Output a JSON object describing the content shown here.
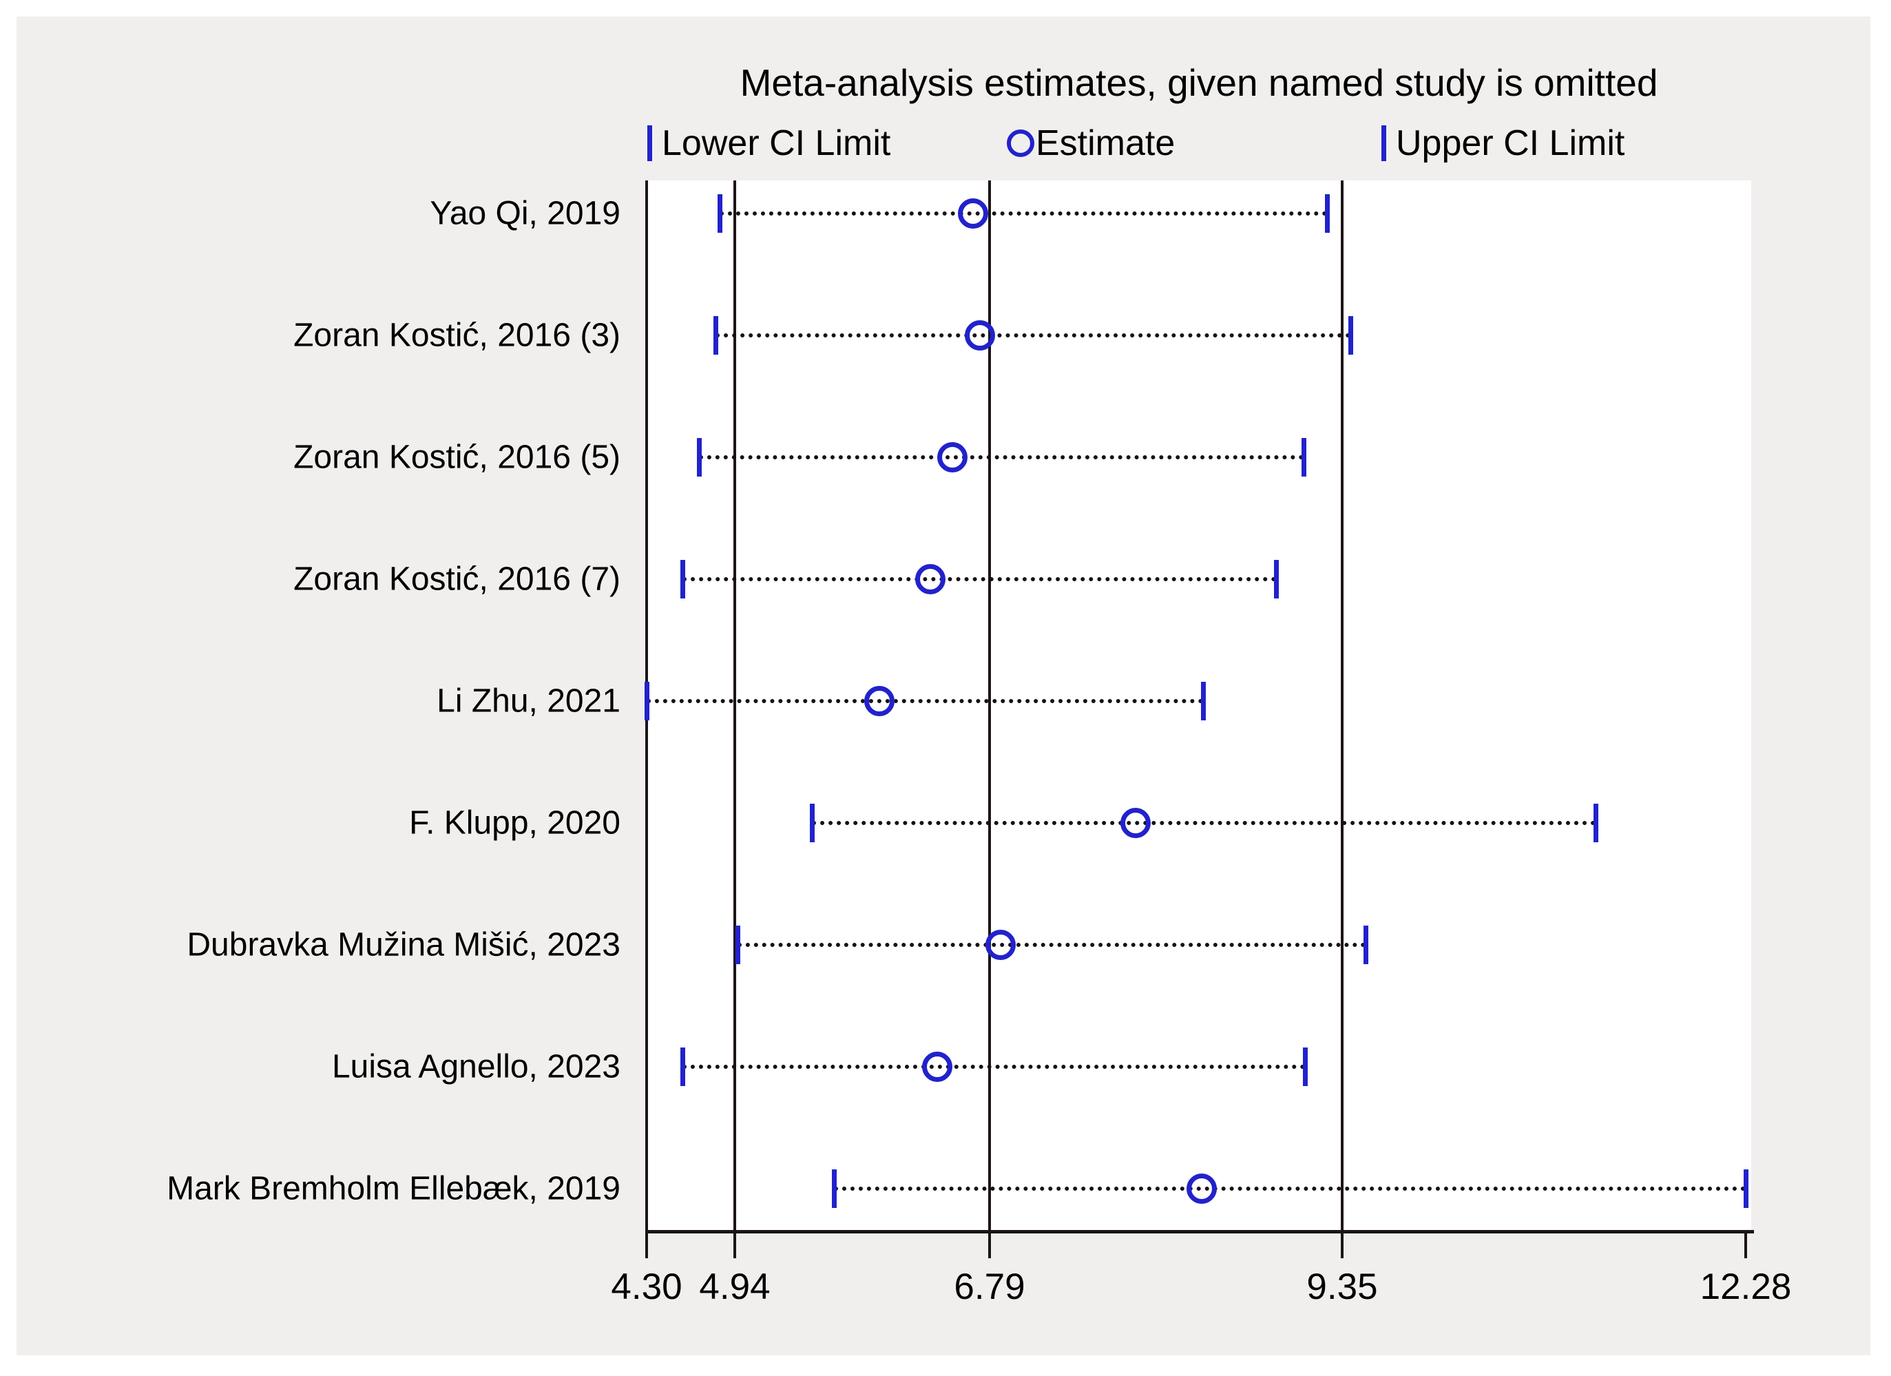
{
  "title": "Meta-analysis estimates, given named study is omitted",
  "legend": {
    "items": [
      {
        "marker": "lower-ci-bar-icon",
        "label": "Lower CI Limit"
      },
      {
        "marker": "estimate-circle-icon",
        "label": "Estimate"
      },
      {
        "marker": "upper-ci-bar-icon",
        "label": "Upper CI Limit"
      }
    ]
  },
  "colors": {
    "marker_blue": "#2222cc",
    "line_black": "#1c1416",
    "panel_grey": "#f0efee",
    "plot_background": "#ffffff",
    "text": "#000000"
  },
  "chart_data": {
    "type": "scatter",
    "subtype": "leave-one-out-sensitivity-forest",
    "title": "Meta-analysis estimates, given named study is omitted",
    "legend_entries": [
      "Lower CI Limit",
      "Estimate",
      "Upper CI Limit"
    ],
    "legend_position": "top",
    "xlim": [
      4.3,
      12.28
    ],
    "x_tick_labels": [
      "4.30",
      "4.94",
      "6.79",
      "9.35",
      "12.28"
    ],
    "reference_lines": [
      4.94,
      6.79,
      9.35
    ],
    "axis_boundary_line": 4.3,
    "grid": false,
    "studies": [
      {
        "label": "Yao Qi, 2019",
        "lower": 4.83,
        "estimate": 6.67,
        "upper": 9.24
      },
      {
        "label": "Zoran Kostić, 2016 (3)",
        "lower": 4.8,
        "estimate": 6.72,
        "upper": 9.41
      },
      {
        "label": "Zoran Kostić, 2016 (5)",
        "lower": 4.68,
        "estimate": 6.52,
        "upper": 9.07
      },
      {
        "label": "Zoran Kostić, 2016 (7)",
        "lower": 4.56,
        "estimate": 6.36,
        "upper": 8.87
      },
      {
        "label": "Li Zhu, 2021",
        "lower": 4.3,
        "estimate": 5.99,
        "upper": 8.34
      },
      {
        "label": "F. Klupp, 2020",
        "lower": 5.5,
        "estimate": 7.85,
        "upper": 11.19
      },
      {
        "label": "Dubravka Mužina Mišić, 2023",
        "lower": 4.96,
        "estimate": 6.87,
        "upper": 9.52
      },
      {
        "label": "Luisa Agnello, 2023",
        "lower": 4.56,
        "estimate": 6.41,
        "upper": 9.08
      },
      {
        "label": "Mark Bremholm Ellebæk, 2019",
        "lower": 5.66,
        "estimate": 8.33,
        "upper": 12.28
      }
    ]
  }
}
